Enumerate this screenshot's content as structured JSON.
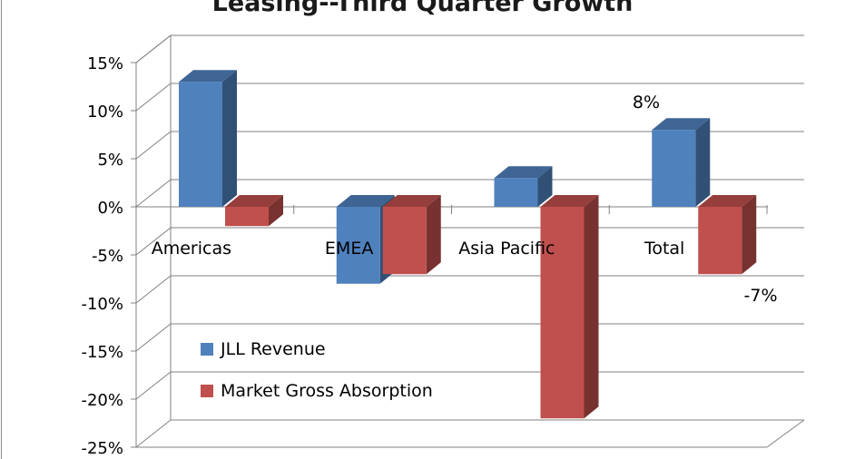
{
  "chart_data": {
    "type": "bar",
    "title": "Leasing--Third Quarter Growth",
    "categories": [
      "Americas",
      "EMEA",
      "Asia Pacific",
      "Total"
    ],
    "series": [
      {
        "name": "JLL Revenue",
        "values": [
          13,
          -8,
          3,
          8
        ],
        "color": "#4f81bd"
      },
      {
        "name": "Market Gross Absorption",
        "values": [
          -2,
          -7,
          -22,
          -7
        ],
        "color": "#c0504d"
      }
    ],
    "ylim": [
      -25,
      15
    ],
    "yticks": [
      "15%",
      "10%",
      "5%",
      "0%",
      "-5%",
      "-10%",
      "-15%",
      "-20%",
      "-25%"
    ],
    "data_labels": [
      {
        "series": 0,
        "category": 3,
        "text": "8%"
      },
      {
        "series": 1,
        "category": 3,
        "text": "-7%"
      }
    ],
    "legend_position": "bottom-left inside plot",
    "gridlines": true,
    "style": "3d-clustered-column"
  }
}
